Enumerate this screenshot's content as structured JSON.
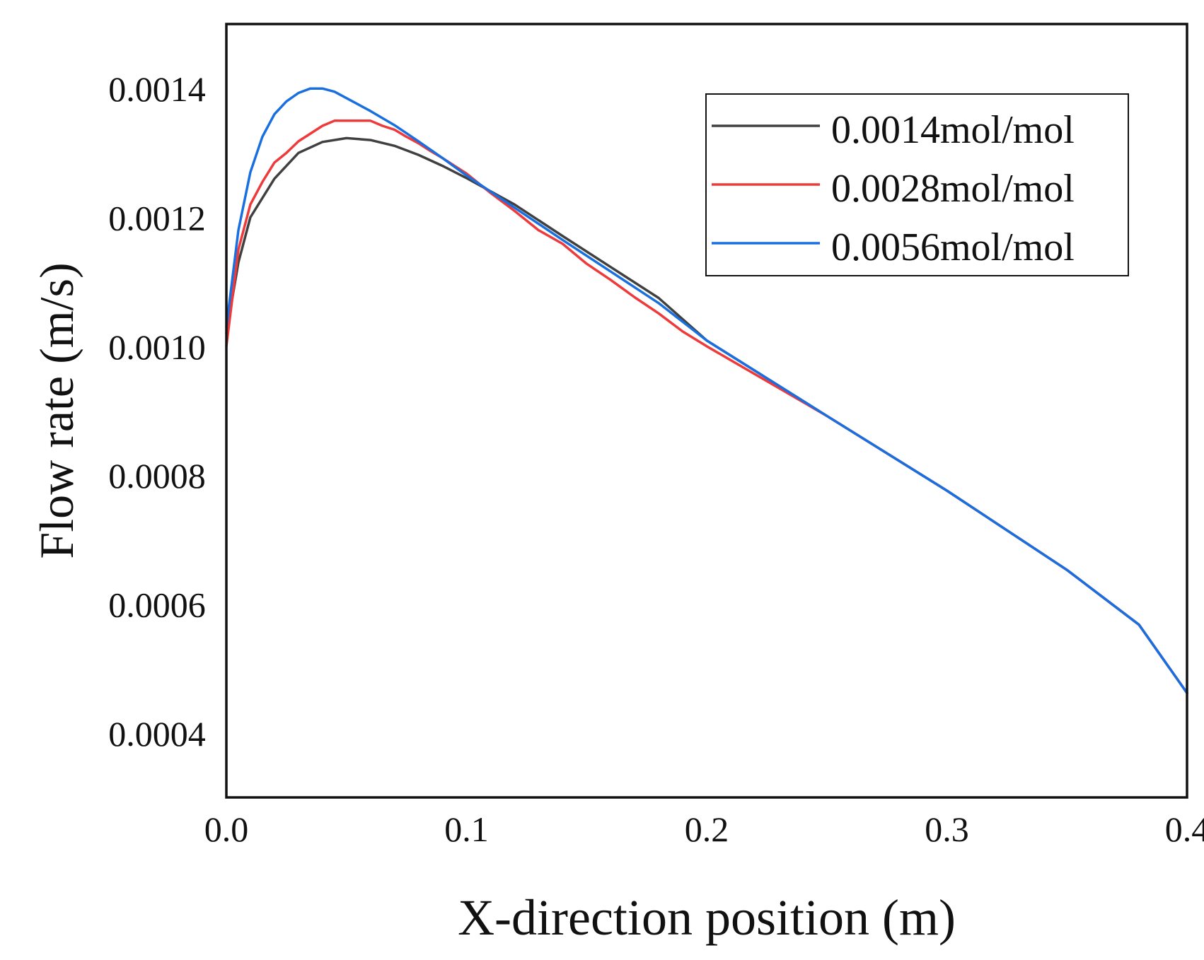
{
  "chart_data": {
    "type": "line",
    "title": "",
    "xlabel": "X-direction position (m)",
    "ylabel": "Flow rate (m/s)",
    "xlim": [
      0.0,
      0.4
    ],
    "ylim": [
      0.0003,
      0.0015
    ],
    "xticks": [
      0.0,
      0.1,
      0.2,
      0.3,
      0.4
    ],
    "xtick_labels": [
      "0.0",
      "0.1",
      "0.2",
      "0.3",
      "0.4"
    ],
    "yticks": [
      0.0004,
      0.0006,
      0.0008,
      0.001,
      0.0012,
      0.0014
    ],
    "ytick_labels": [
      "0.0004",
      "0.0006",
      "0.0008",
      "0.0010",
      "0.0012",
      "0.0014"
    ],
    "grid": false,
    "legend_position": "top-right",
    "series": [
      {
        "name": "0.0014mol/mol",
        "color": "#404040",
        "x": [
          0.0,
          0.005,
          0.01,
          0.02,
          0.03,
          0.04,
          0.05,
          0.06,
          0.07,
          0.08,
          0.09,
          0.1,
          0.12,
          0.14,
          0.16,
          0.18,
          0.2,
          0.25,
          0.3,
          0.35,
          0.38,
          0.4
        ],
        "y": [
          0.00102,
          0.00113,
          0.0012,
          0.00126,
          0.0013,
          0.001317,
          0.001323,
          0.00132,
          0.001311,
          0.001297,
          0.00128,
          0.001261,
          0.00122,
          0.001171,
          0.001123,
          0.001075,
          0.001009,
          0.000892,
          0.000776,
          0.000653,
          0.000568,
          0.000462
        ]
      },
      {
        "name": "0.0028mol/mol",
        "color": "#ee3a3a",
        "x": [
          0.0,
          0.005,
          0.01,
          0.015,
          0.02,
          0.025,
          0.03,
          0.035,
          0.04,
          0.045,
          0.05,
          0.055,
          0.06,
          0.065,
          0.07,
          0.075,
          0.08,
          0.085,
          0.09,
          0.095,
          0.1,
          0.11,
          0.12,
          0.13,
          0.14,
          0.15,
          0.16,
          0.17,
          0.18,
          0.19,
          0.2,
          0.25,
          0.3,
          0.35,
          0.38,
          0.4
        ],
        "y": [
          0.001,
          0.00115,
          0.00122,
          0.001255,
          0.001285,
          0.0013,
          0.001318,
          0.00133,
          0.001342,
          0.00135,
          0.00135,
          0.00135,
          0.00135,
          0.001342,
          0.001336,
          0.001325,
          0.001315,
          0.001303,
          0.001292,
          0.00128,
          0.001268,
          0.001238,
          0.00121,
          0.00118,
          0.001159,
          0.001128,
          0.001103,
          0.001076,
          0.001051,
          0.001023,
          0.001,
          0.000892,
          0.000776,
          0.000653,
          0.000568,
          0.000462
        ]
      },
      {
        "name": "0.0056mol/mol",
        "color": "#1a6fe0",
        "x": [
          0.0,
          0.005,
          0.01,
          0.015,
          0.02,
          0.025,
          0.03,
          0.035,
          0.04,
          0.045,
          0.05,
          0.06,
          0.07,
          0.08,
          0.09,
          0.1,
          0.12,
          0.14,
          0.16,
          0.18,
          0.2,
          0.25,
          0.3,
          0.35,
          0.38,
          0.4
        ],
        "y": [
          0.00103,
          0.00118,
          0.00127,
          0.001325,
          0.00136,
          0.00138,
          0.001393,
          0.0014,
          0.0014,
          0.001395,
          0.001385,
          0.001365,
          0.001343,
          0.001318,
          0.001292,
          0.001265,
          0.001215,
          0.001165,
          0.001116,
          0.001067,
          0.001009,
          0.000892,
          0.000776,
          0.000653,
          0.000568,
          0.000462
        ]
      }
    ]
  }
}
